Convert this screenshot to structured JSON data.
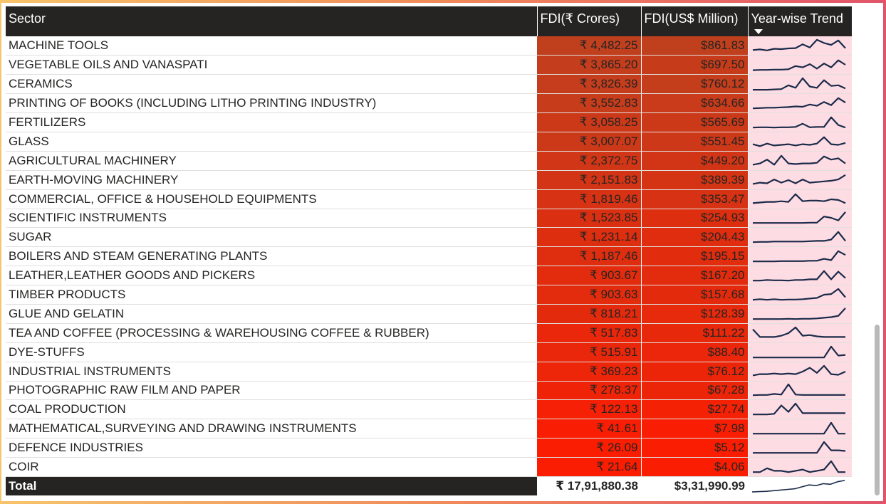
{
  "columns": {
    "sector": "Sector",
    "inr": "FDI(₹ Crores)",
    "usd": "FDI(US$ Million)",
    "trend": "Year-wise Trend"
  },
  "rows": [
    {
      "sector": "MACHINE TOOLS",
      "inr": "₹ 4,482.25",
      "usd": "$861.83",
      "inr_value": 4482.25,
      "usd_value": 861.83,
      "trend": [
        0.15,
        0.2,
        0.12,
        0.25,
        0.22,
        0.28,
        0.3,
        0.6,
        0.35,
        0.95,
        0.7,
        0.55,
        0.9,
        0.3
      ]
    },
    {
      "sector": "VEGETABLE OILS AND VANASPATI",
      "inr": "₹ 3,865.20",
      "usd": "$697.50",
      "inr_value": 3865.2,
      "usd_value": 697.5,
      "trend": [
        0.08,
        0.1,
        0.1,
        0.12,
        0.12,
        0.15,
        0.4,
        0.3,
        0.55,
        0.2,
        0.6,
        0.3,
        0.85,
        0.5
      ]
    },
    {
      "sector": "CERAMICS",
      "inr": "₹ 3,826.39",
      "usd": "$760.12",
      "inr_value": 3826.39,
      "usd_value": 760.12,
      "trend": [
        0.05,
        0.05,
        0.05,
        0.08,
        0.1,
        0.4,
        0.2,
        0.95,
        0.3,
        0.2,
        0.8,
        0.35,
        0.4,
        0.15
      ]
    },
    {
      "sector": "PRINTING OF BOOKS (INCLUDING LITHO PRINTING INDUSTRY)",
      "inr": "₹ 3,552.83",
      "usd": "$634.66",
      "inr_value": 3552.83,
      "usd_value": 634.66,
      "trend": [
        0.1,
        0.12,
        0.15,
        0.15,
        0.18,
        0.2,
        0.25,
        0.22,
        0.4,
        0.3,
        0.6,
        0.35,
        0.9,
        0.55
      ]
    },
    {
      "sector": "FERTILIZERS",
      "inr": "₹ 3,058.25",
      "usd": "$565.69",
      "inr_value": 3058.25,
      "usd_value": 565.69,
      "trend": [
        0.1,
        0.12,
        0.12,
        0.1,
        0.12,
        0.12,
        0.15,
        0.4,
        0.12,
        0.15,
        0.15,
        0.9,
        0.3,
        0.1
      ]
    },
    {
      "sector": "GLASS",
      "inr": "₹ 3,007.07",
      "usd": "$551.45",
      "inr_value": 3007.07,
      "usd_value": 551.45,
      "trend": [
        0.3,
        0.15,
        0.35,
        0.2,
        0.25,
        0.3,
        0.2,
        0.3,
        0.25,
        0.35,
        0.85,
        0.3,
        0.25,
        0.4
      ]
    },
    {
      "sector": "AGRICULTURAL MACHINERY",
      "inr": "₹ 2,372.75",
      "usd": "$449.20",
      "inr_value": 2372.75,
      "usd_value": 449.2,
      "trend": [
        0.2,
        0.3,
        0.6,
        0.2,
        0.9,
        0.3,
        0.25,
        0.3,
        0.3,
        0.35,
        0.85,
        0.6,
        0.7,
        0.3
      ]
    },
    {
      "sector": "EARTH-MOVING MACHINERY",
      "inr": "₹ 2,151.83",
      "usd": "$389.39",
      "inr_value": 2151.83,
      "usd_value": 389.39,
      "trend": [
        0.2,
        0.3,
        0.25,
        0.55,
        0.3,
        0.5,
        0.25,
        0.55,
        0.3,
        0.35,
        0.4,
        0.45,
        0.55,
        0.9
      ]
    },
    {
      "sector": "COMMERCIAL, OFFICE & HOUSEHOLD EQUIPMENTS",
      "inr": "₹ 1,819.46",
      "usd": "$353.47",
      "inr_value": 1819.46,
      "usd_value": 353.47,
      "trend": [
        0.2,
        0.25,
        0.3,
        0.3,
        0.35,
        0.3,
        0.9,
        0.35,
        0.4,
        0.4,
        0.35,
        0.5,
        0.45,
        0.2
      ]
    },
    {
      "sector": "SCIENTIFIC INSTRUMENTS",
      "inr": "₹ 1,523.85",
      "usd": "$254.93",
      "inr_value": 1523.85,
      "usd_value": 254.93,
      "trend": [
        0.1,
        0.1,
        0.1,
        0.1,
        0.1,
        0.1,
        0.1,
        0.1,
        0.12,
        0.12,
        0.6,
        0.5,
        0.3,
        0.95
      ]
    },
    {
      "sector": "SUGAR",
      "inr": "₹ 1,231.14",
      "usd": "$204.43",
      "inr_value": 1231.14,
      "usd_value": 204.43,
      "trend": [
        0.1,
        0.12,
        0.12,
        0.15,
        0.15,
        0.15,
        0.15,
        0.15,
        0.18,
        0.2,
        0.2,
        0.3,
        0.9,
        0.2
      ]
    },
    {
      "sector": "BOILERS AND STEAM GENERATING PLANTS",
      "inr": "₹ 1,187.46",
      "usd": "$195.15",
      "inr_value": 1187.46,
      "usd_value": 195.15,
      "trend": [
        0.1,
        0.1,
        0.1,
        0.1,
        0.12,
        0.12,
        0.12,
        0.12,
        0.15,
        0.15,
        0.3,
        0.2,
        0.9,
        0.6
      ]
    },
    {
      "sector": "LEATHER,LEATHER GOODS AND PICKERS",
      "inr": "₹ 903.67",
      "usd": "$167.20",
      "inr_value": 903.67,
      "usd_value": 167.2,
      "trend": [
        0.1,
        0.1,
        0.15,
        0.12,
        0.12,
        0.1,
        0.15,
        0.15,
        0.2,
        0.2,
        0.85,
        0.2,
        0.8,
        0.3
      ]
    },
    {
      "sector": "TIMBER PRODUCTS",
      "inr": "₹ 903.63",
      "usd": "$157.68",
      "inr_value": 903.63,
      "usd_value": 157.68,
      "trend": [
        0.1,
        0.15,
        0.1,
        0.15,
        0.1,
        0.12,
        0.12,
        0.15,
        0.2,
        0.25,
        0.5,
        0.55,
        0.95,
        0.3
      ]
    },
    {
      "sector": "GLUE AND GELATIN",
      "inr": "₹ 818.21",
      "usd": "$128.39",
      "inr_value": 818.21,
      "usd_value": 128.39,
      "trend": [
        0.1,
        0.1,
        0.1,
        0.1,
        0.1,
        0.12,
        0.1,
        0.12,
        0.12,
        0.15,
        0.2,
        0.25,
        0.35,
        0.95
      ]
    },
    {
      "sector": "TEA AND COFFEE (PROCESSING & WAREHOUSING COFFEE & RUBBER)",
      "inr": "₹ 517.83",
      "usd": "$111.22",
      "inr_value": 517.83,
      "usd_value": 111.22,
      "trend": [
        0.8,
        0.2,
        0.2,
        0.2,
        0.3,
        0.5,
        0.95,
        0.3,
        0.35,
        0.25,
        0.2,
        0.2,
        0.2,
        0.2
      ]
    },
    {
      "sector": "DYE-STUFFS",
      "inr": "₹ 515.91",
      "usd": "$88.40",
      "inr_value": 515.91,
      "usd_value": 88.4,
      "trend": [
        0.1,
        0.1,
        0.1,
        0.1,
        0.1,
        0.1,
        0.1,
        0.1,
        0.1,
        0.1,
        0.1,
        0.95,
        0.25,
        0.3
      ]
    },
    {
      "sector": "INDUSTRIAL INSTRUMENTS",
      "inr": "₹ 369.23",
      "usd": "$76.12",
      "inr_value": 369.23,
      "usd_value": 76.12,
      "trend": [
        0.2,
        0.3,
        0.3,
        0.35,
        0.3,
        0.35,
        0.3,
        0.5,
        0.8,
        0.4,
        0.95,
        0.3,
        0.25,
        0.5
      ]
    },
    {
      "sector": "PHOTOGRAPHIC RAW FILM AND PAPER",
      "inr": "₹ 278.37",
      "usd": "$67.28",
      "inr_value": 278.37,
      "usd_value": 67.28,
      "trend": [
        0.1,
        0.12,
        0.12,
        0.2,
        0.15,
        0.95,
        0.15,
        0.12,
        0.12,
        0.12,
        0.12,
        0.12,
        0.12,
        0.12
      ]
    },
    {
      "sector": "COAL PRODUCTION",
      "inr": "₹ 122.13",
      "usd": "$27.74",
      "inr_value": 122.13,
      "usd_value": 27.74,
      "trend": [
        0.1,
        0.1,
        0.1,
        0.15,
        0.8,
        0.3,
        0.95,
        0.2,
        0.2,
        0.2,
        0.2,
        0.2,
        0.2,
        0.2
      ]
    },
    {
      "sector": "MATHEMATICAL,SURVEYING AND DRAWING INSTRUMENTS",
      "inr": "₹ 41.61",
      "usd": "$7.98",
      "inr_value": 41.61,
      "usd_value": 7.98,
      "trend": [
        0.1,
        0.1,
        0.1,
        0.1,
        0.1,
        0.1,
        0.1,
        0.1,
        0.1,
        0.1,
        0.1,
        0.95,
        0.1,
        0.1
      ]
    },
    {
      "sector": "DEFENCE INDUSTRIES",
      "inr": "₹ 26.09",
      "usd": "$5.12",
      "inr_value": 26.09,
      "usd_value": 5.12,
      "trend": [
        0.1,
        0.1,
        0.1,
        0.1,
        0.1,
        0.1,
        0.1,
        0.1,
        0.1,
        0.1,
        0.95,
        0.3,
        0.3,
        0.25
      ]
    },
    {
      "sector": "COIR",
      "inr": "₹ 21.64",
      "usd": "$4.06",
      "inr_value": 21.64,
      "usd_value": 4.06,
      "trend": [
        0.1,
        0.1,
        0.4,
        0.2,
        0.2,
        0.1,
        0.2,
        0.3,
        0.1,
        0.2,
        0.3,
        0.95,
        0.1,
        0.1
      ]
    }
  ],
  "total": {
    "label": "Total",
    "inr": "₹ 17,91,880.38",
    "usd": "$3,31,990.99",
    "trend": [
      0.05,
      0.08,
      0.1,
      0.15,
      0.2,
      0.25,
      0.3,
      0.45,
      0.6,
      0.55,
      0.7,
      0.65,
      0.85,
      0.95
    ]
  },
  "colors": {
    "header_bg": "#252423",
    "sparkline": "#1b2a4a",
    "trend_bg": "#fddde3",
    "heat_high": "#c0401e",
    "heat_low": "#ff1a00"
  }
}
